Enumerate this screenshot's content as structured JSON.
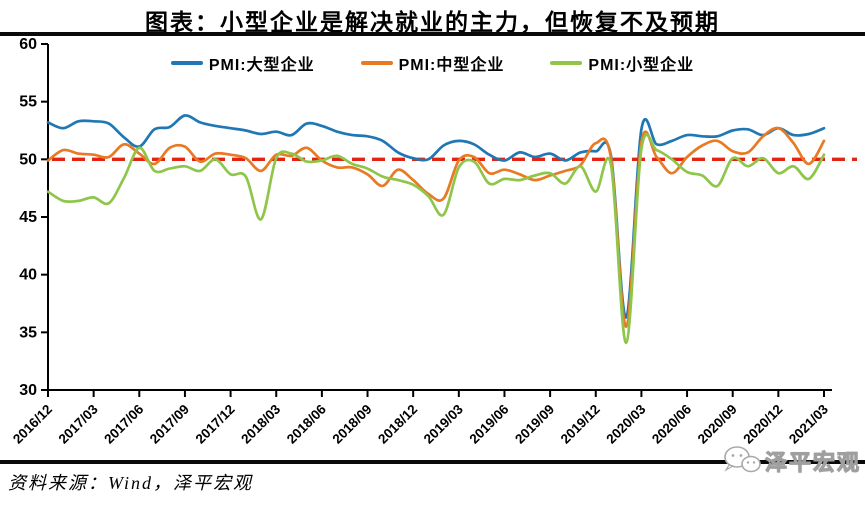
{
  "title": "图表：小型企业是解决就业的主力，但恢复不及预期",
  "source_note": "资料来源：Wind，泽平宏观",
  "watermark": {
    "label": "泽平宏观",
    "icon": "wechat-chat-bubbles-icon"
  },
  "chart_data": {
    "type": "line",
    "title": "图表：小型企业是解决就业的主力，但恢复不及预期",
    "xlabel": "",
    "ylabel": "",
    "ylim": [
      30,
      60
    ],
    "yticks": [
      30,
      35,
      40,
      45,
      50,
      55,
      60
    ],
    "grid": false,
    "legend_position": "top-center",
    "reference_line": {
      "value": 50,
      "color": "#e42313",
      "style": "dashed"
    },
    "x": [
      "2016/12",
      "2017/01",
      "2017/02",
      "2017/03",
      "2017/04",
      "2017/05",
      "2017/06",
      "2017/07",
      "2017/08",
      "2017/09",
      "2017/10",
      "2017/11",
      "2017/12",
      "2018/01",
      "2018/02",
      "2018/03",
      "2018/04",
      "2018/05",
      "2018/06",
      "2018/07",
      "2018/08",
      "2018/09",
      "2018/10",
      "2018/11",
      "2018/12",
      "2019/01",
      "2019/02",
      "2019/03",
      "2019/04",
      "2019/05",
      "2019/06",
      "2019/07",
      "2019/08",
      "2019/09",
      "2019/10",
      "2019/11",
      "2019/12",
      "2020/01",
      "2020/02",
      "2020/03",
      "2020/04",
      "2020/05",
      "2020/06",
      "2020/07",
      "2020/08",
      "2020/09",
      "2020/10",
      "2020/11",
      "2020/12",
      "2021/01",
      "2021/02",
      "2021/03"
    ],
    "x_tick_labels": [
      "2016/12",
      "2017/03",
      "2017/06",
      "2017/09",
      "2017/12",
      "2018/03",
      "2018/06",
      "2018/09",
      "2018/12",
      "2019/03",
      "2019/06",
      "2019/09",
      "2019/12",
      "2020/03",
      "2020/06",
      "2020/09",
      "2020/12",
      "2021/03"
    ],
    "series": [
      {
        "name": "PMI:大型企业",
        "color": "#1f77b4",
        "values": [
          53.2,
          52.7,
          53.3,
          53.3,
          53.1,
          51.9,
          51.1,
          52.6,
          52.8,
          53.8,
          53.2,
          52.9,
          52.7,
          52.5,
          52.2,
          52.4,
          52.1,
          53.1,
          52.9,
          52.4,
          52.1,
          52.0,
          51.6,
          50.6,
          50.1,
          50.0,
          51.2,
          51.6,
          51.3,
          50.4,
          49.9,
          50.6,
          50.2,
          50.5,
          49.9,
          50.6,
          50.7,
          50.3,
          36.3,
          52.6,
          51.3,
          51.6,
          52.1,
          52.0,
          52.0,
          52.5,
          52.6,
          52.1,
          52.7,
          52.1,
          52.2,
          52.7
        ]
      },
      {
        "name": "PMI:中型企业",
        "color": "#e87a24",
        "values": [
          49.9,
          50.8,
          50.5,
          50.4,
          50.2,
          51.3,
          50.5,
          49.6,
          51.0,
          51.1,
          49.8,
          50.5,
          50.4,
          50.1,
          49.0,
          50.4,
          50.3,
          51.0,
          49.9,
          49.3,
          49.3,
          48.7,
          47.7,
          49.1,
          48.2,
          47.0,
          46.6,
          49.9,
          50.2,
          48.8,
          49.1,
          48.7,
          48.2,
          48.6,
          49.0,
          49.5,
          51.4,
          50.1,
          35.5,
          51.5,
          50.2,
          48.8,
          50.2,
          51.2,
          51.6,
          50.7,
          50.6,
          52.0,
          52.7,
          51.4,
          49.6,
          51.6
        ]
      },
      {
        "name": "PMI:小型企业",
        "color": "#8fc64a",
        "values": [
          47.2,
          46.4,
          46.4,
          46.7,
          46.2,
          48.4,
          51.0,
          49.0,
          49.2,
          49.4,
          49.0,
          50.0,
          48.7,
          48.5,
          44.8,
          50.1,
          50.5,
          49.8,
          49.9,
          50.3,
          49.6,
          49.2,
          48.5,
          48.2,
          47.8,
          46.8,
          45.2,
          49.3,
          49.8,
          47.9,
          48.3,
          48.2,
          48.6,
          48.8,
          47.9,
          49.4,
          47.2,
          49.5,
          34.1,
          50.9,
          50.8,
          50.0,
          48.9,
          48.6,
          47.7,
          50.1,
          49.4,
          50.1,
          48.8,
          49.4,
          48.3,
          50.4
        ]
      }
    ]
  }
}
